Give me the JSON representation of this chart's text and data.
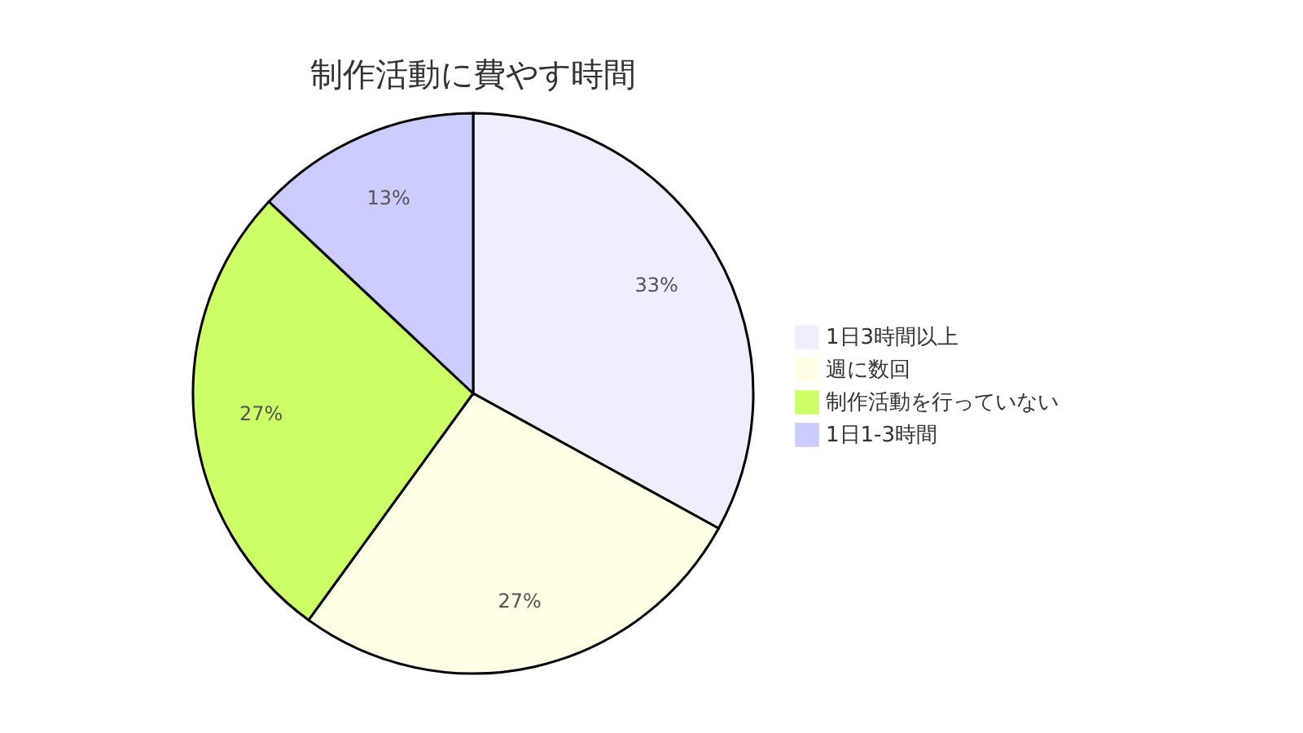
{
  "chart_data": {
    "type": "pie",
    "title": "制作活動に費やす時間",
    "categories": [
      "1日3時間以上",
      "週に数回",
      "制作活動を行っていない",
      "1日1-3時間"
    ],
    "values": [
      33,
      27,
      27,
      13
    ],
    "colors": [
      "#eeeeff",
      "#ffffe6",
      "#ccff66",
      "#ccccff"
    ],
    "value_labels": [
      "33%",
      "27%",
      "27%",
      "13%"
    ],
    "legend": "right"
  }
}
